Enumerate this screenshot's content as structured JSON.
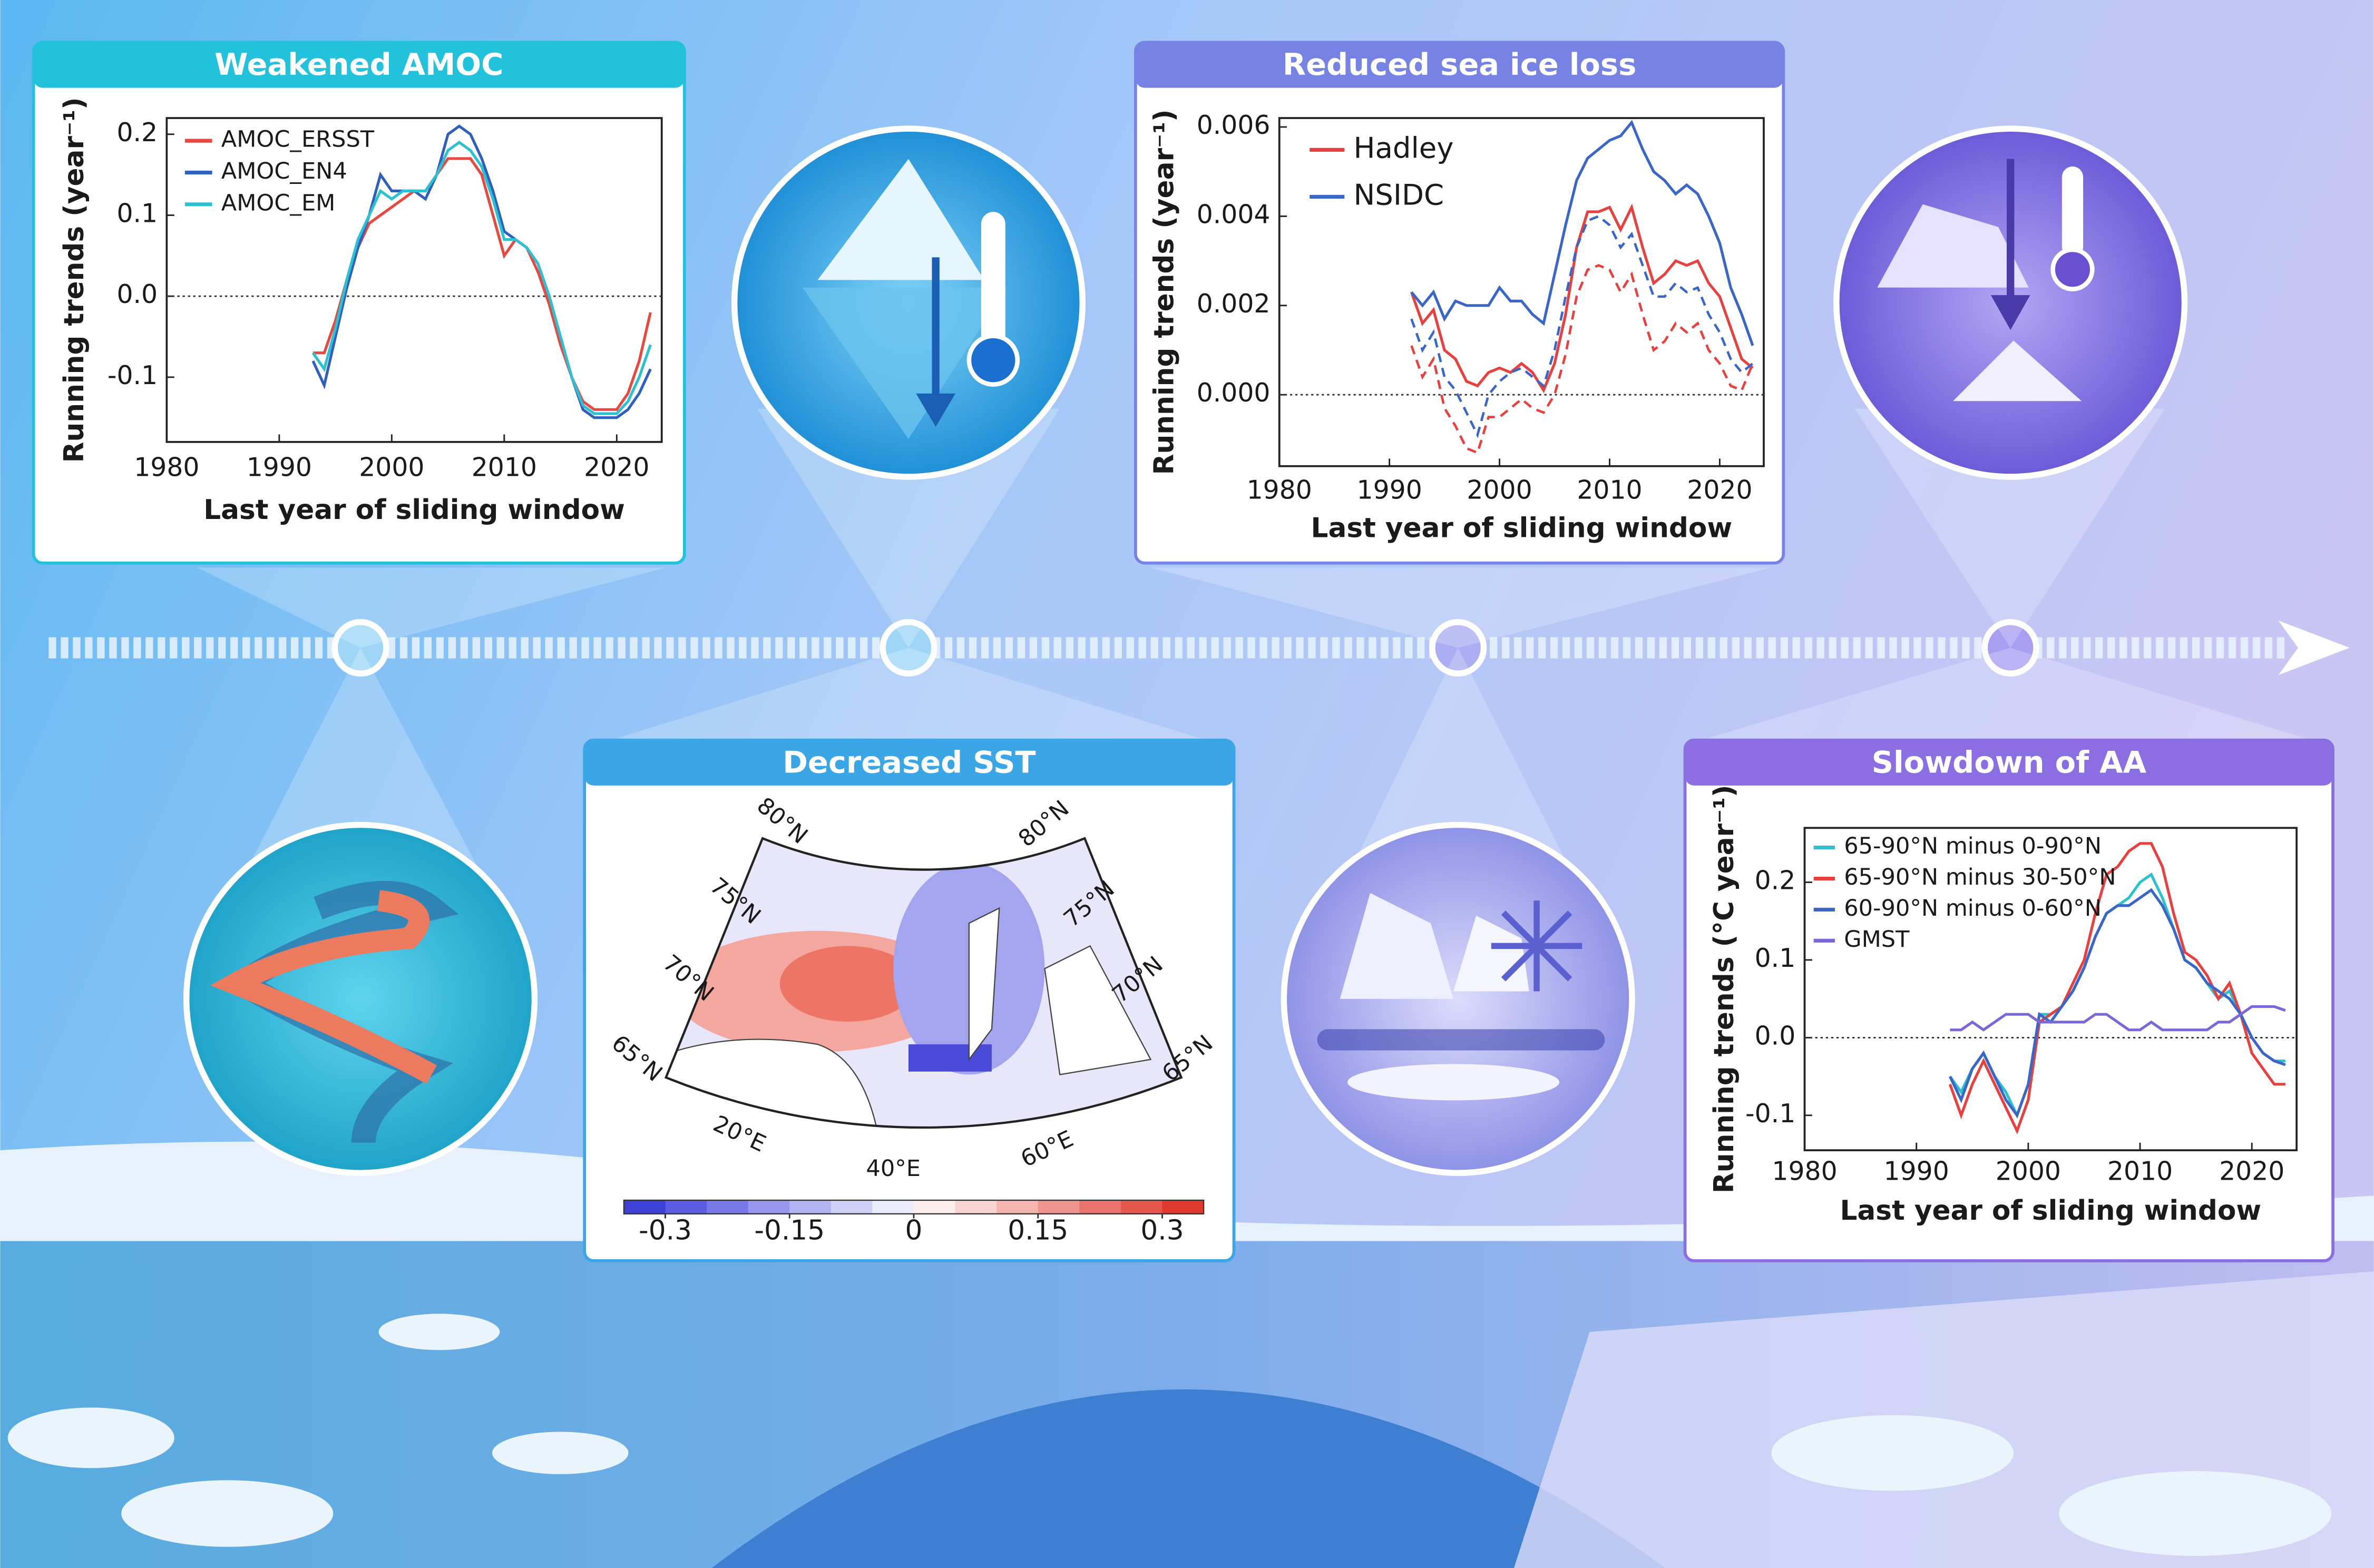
{
  "chart_data": [
    {
      "type": "line",
      "title": "Weakened AMOC",
      "xlabel": "Last year of sliding window",
      "ylabel": "Running trends (year⁻¹)",
      "xlim": [
        1980,
        2024
      ],
      "xticks": [
        1980,
        1990,
        2000,
        2010,
        2020
      ],
      "ylim": [
        -0.18,
        0.22
      ],
      "yticks": [
        0.2,
        0.1,
        {
          "value": 0,
          "label": "0.0"
        },
        -0.1
      ],
      "zero_line": true,
      "grid": false,
      "legend": "upper left",
      "x": [
        1993,
        1994,
        1995,
        1996,
        1997,
        1998,
        1999,
        2000,
        2001,
        2002,
        2003,
        2004,
        2005,
        2006,
        2007,
        2008,
        2009,
        2010,
        2011,
        2012,
        2013,
        2014,
        2015,
        2016,
        2017,
        2018,
        2019,
        2020,
        2021,
        2022,
        2023
      ],
      "series": [
        {
          "name": "AMOC_ERSST",
          "color": "#e8483f",
          "values": [
            -0.07,
            -0.07,
            -0.03,
            0.02,
            0.06,
            0.09,
            0.1,
            0.11,
            0.12,
            0.13,
            0.13,
            0.15,
            0.17,
            0.17,
            0.17,
            0.15,
            0.1,
            0.05,
            0.07,
            0.06,
            0.03,
            -0.01,
            -0.06,
            -0.1,
            -0.13,
            -0.14,
            -0.14,
            -0.14,
            -0.12,
            -0.08,
            -0.02
          ]
        },
        {
          "name": "AMOC_EN4",
          "color": "#2f5fbf",
          "values": [
            -0.08,
            -0.11,
            -0.05,
            0.01,
            0.06,
            0.1,
            0.15,
            0.13,
            0.13,
            0.13,
            0.12,
            0.15,
            0.2,
            0.21,
            0.2,
            0.17,
            0.13,
            0.08,
            0.07,
            0.06,
            0.04,
            0.0,
            -0.05,
            -0.1,
            -0.14,
            -0.15,
            -0.15,
            -0.15,
            -0.14,
            -0.12,
            -0.09
          ]
        },
        {
          "name": "AMOC_EM",
          "color": "#2cc0d0",
          "values": [
            -0.07,
            -0.09,
            -0.04,
            0.02,
            0.07,
            0.1,
            0.13,
            0.12,
            0.13,
            0.13,
            0.13,
            0.15,
            0.18,
            0.19,
            0.18,
            0.16,
            0.12,
            0.07,
            0.07,
            0.06,
            0.04,
            0.0,
            -0.05,
            -0.1,
            -0.135,
            -0.145,
            -0.145,
            -0.145,
            -0.13,
            -0.1,
            -0.06
          ]
        }
      ]
    },
    {
      "type": "line",
      "title": "Reduced sea ice loss",
      "xlabel": "Last year of sliding window",
      "ylabel": "Running trends (year⁻¹)",
      "xlim": [
        1980,
        2024
      ],
      "xticks": [
        1980,
        1990,
        2000,
        2010,
        2020
      ],
      "ylim": [
        -0.0016,
        0.0062
      ],
      "yticks": [
        0.006,
        0.004,
        0.002,
        {
          "value": 0,
          "label": "0.000"
        }
      ],
      "zero_line": true,
      "grid": false,
      "legend": "upper left",
      "x": [
        1992,
        1993,
        1994,
        1995,
        1996,
        1997,
        1998,
        1999,
        2000,
        2001,
        2002,
        2003,
        2004,
        2005,
        2006,
        2007,
        2008,
        2009,
        2010,
        2011,
        2012,
        2013,
        2014,
        2015,
        2016,
        2017,
        2018,
        2019,
        2020,
        2021,
        2022,
        2023
      ],
      "series": [
        {
          "name": "Hadley",
          "color": "#e8403f",
          "values": [
            0.0023,
            0.0016,
            0.0019,
            0.001,
            0.0008,
            0.0003,
            0.0002,
            0.0005,
            0.0006,
            0.0005,
            0.0007,
            0.0005,
            0.0001,
            0.0007,
            0.0018,
            0.0033,
            0.0041,
            0.0041,
            0.0042,
            0.0037,
            0.0042,
            0.0033,
            0.0025,
            0.0027,
            0.003,
            0.0029,
            0.003,
            0.0025,
            0.0022,
            0.0015,
            0.0008,
            0.0006
          ],
          "dashed_values": [
            0.0011,
            0.0004,
            0.0008,
            -0.0003,
            -0.0007,
            -0.0012,
            -0.0013,
            -0.0005,
            -0.0005,
            -0.0003,
            -0.0001,
            -0.0003,
            -0.0004,
            0.0,
            0.0009,
            0.0022,
            0.0028,
            0.0029,
            0.0028,
            0.0023,
            0.0027,
            0.0018,
            0.001,
            0.0012,
            0.0016,
            0.0014,
            0.0016,
            0.001,
            0.0007,
            0.0002,
            0.0001,
            0.0007
          ]
        },
        {
          "name": "NSIDC",
          "color": "#3a66c8",
          "values": [
            0.0023,
            0.002,
            0.0023,
            0.0017,
            0.0021,
            0.002,
            0.002,
            0.002,
            0.0024,
            0.0021,
            0.0021,
            0.0018,
            0.0016,
            0.0027,
            0.0038,
            0.0048,
            0.0053,
            0.0055,
            0.0057,
            0.0058,
            0.0061,
            0.0055,
            0.005,
            0.0048,
            0.0045,
            0.0047,
            0.0045,
            0.004,
            0.0034,
            0.0024,
            0.0018,
            0.0011
          ],
          "dashed_values": [
            0.0017,
            0.001,
            0.0014,
            0.0004,
            0.0001,
            -0.0004,
            -0.0009,
            0.0,
            0.0003,
            0.0005,
            0.0006,
            0.0004,
            0.0002,
            0.001,
            0.0022,
            0.0033,
            0.0039,
            0.004,
            0.0038,
            0.0033,
            0.0036,
            0.0029,
            0.0022,
            0.0022,
            0.0025,
            0.0023,
            0.0024,
            0.0018,
            0.0014,
            0.0008,
            0.0005,
            0.0007
          ]
        }
      ]
    },
    {
      "type": "map",
      "title": "Decreased SST",
      "lat_labels": [
        "80°N",
        "75°N",
        "70°N",
        "65°N"
      ],
      "lon_labels": [
        "20°E",
        "40°E",
        "60°E"
      ],
      "clim": [
        -0.35,
        0.35
      ],
      "colorbar_ticks": [
        -0.3,
        -0.15,
        0,
        0.15,
        0.3
      ],
      "colors": [
        "#3d3fd9",
        "#5a5de0",
        "#7679e6",
        "#9598ec",
        "#b2b4f2",
        "#cfd0f7",
        "#ecedfc",
        "#fdeeee",
        "#f9d3d1",
        "#f4b4b0",
        "#ef948e",
        "#ea746c",
        "#e5564c",
        "#e0392f"
      ]
    },
    {
      "type": "line",
      "title": "Slowdown of AA",
      "xlabel": "Last year of sliding window",
      "ylabel": "Running trends (°C year⁻¹)",
      "xlim": [
        1980,
        2024
      ],
      "xticks": [
        1980,
        1990,
        2000,
        2010,
        2020
      ],
      "ylim": [
        -0.145,
        0.27
      ],
      "yticks": [
        0.2,
        0.1,
        {
          "value": 0,
          "label": "0.0"
        },
        -0.1
      ],
      "zero_line": true,
      "grid": false,
      "legend": "upper left",
      "x": [
        1993,
        1994,
        1995,
        1996,
        1997,
        1998,
        1999,
        2000,
        2001,
        2002,
        2003,
        2004,
        2005,
        2006,
        2007,
        2008,
        2009,
        2010,
        2011,
        2012,
        2013,
        2014,
        2015,
        2016,
        2017,
        2018,
        2019,
        2020,
        2021,
        2022,
        2023
      ],
      "series": [
        {
          "name": "65-90°N minus 0-90°N",
          "color": "#2cc0d0",
          "values": [
            -0.05,
            -0.07,
            -0.04,
            -0.02,
            -0.05,
            -0.07,
            -0.1,
            -0.06,
            0.03,
            0.03,
            0.04,
            0.06,
            0.09,
            0.13,
            0.16,
            0.17,
            0.18,
            0.2,
            0.21,
            0.18,
            0.14,
            0.1,
            0.09,
            0.07,
            0.05,
            0.06,
            0.03,
            0.0,
            -0.02,
            -0.03,
            -0.03
          ]
        },
        {
          "name": "65-90°N minus 30-50°N",
          "color": "#e8403f",
          "values": [
            -0.06,
            -0.1,
            -0.06,
            -0.03,
            -0.06,
            -0.09,
            -0.12,
            -0.08,
            0.02,
            0.03,
            0.04,
            0.07,
            0.1,
            0.16,
            0.21,
            0.22,
            0.24,
            0.25,
            0.25,
            0.22,
            0.16,
            0.11,
            0.1,
            0.08,
            0.05,
            0.07,
            0.03,
            -0.02,
            -0.04,
            -0.06,
            -0.06
          ]
        },
        {
          "name": "60-90°N minus 0-60°N",
          "color": "#3a66c8",
          "values": [
            -0.05,
            -0.08,
            -0.04,
            -0.02,
            -0.05,
            -0.08,
            -0.1,
            -0.06,
            0.03,
            0.02,
            0.04,
            0.06,
            0.09,
            0.13,
            0.16,
            0.17,
            0.17,
            0.18,
            0.19,
            0.17,
            0.14,
            0.1,
            0.09,
            0.07,
            0.06,
            0.05,
            0.03,
            0.0,
            -0.02,
            -0.03,
            -0.035
          ]
        },
        {
          "name": "GMST",
          "color": "#7b68d8",
          "values": [
            0.01,
            0.01,
            0.02,
            0.01,
            0.02,
            0.03,
            0.03,
            0.03,
            0.02,
            0.02,
            0.02,
            0.02,
            0.02,
            0.03,
            0.03,
            0.02,
            0.01,
            0.01,
            0.02,
            0.01,
            0.01,
            0.01,
            0.01,
            0.01,
            0.02,
            0.02,
            0.03,
            0.04,
            0.04,
            0.04,
            0.035
          ]
        }
      ]
    }
  ]
}
